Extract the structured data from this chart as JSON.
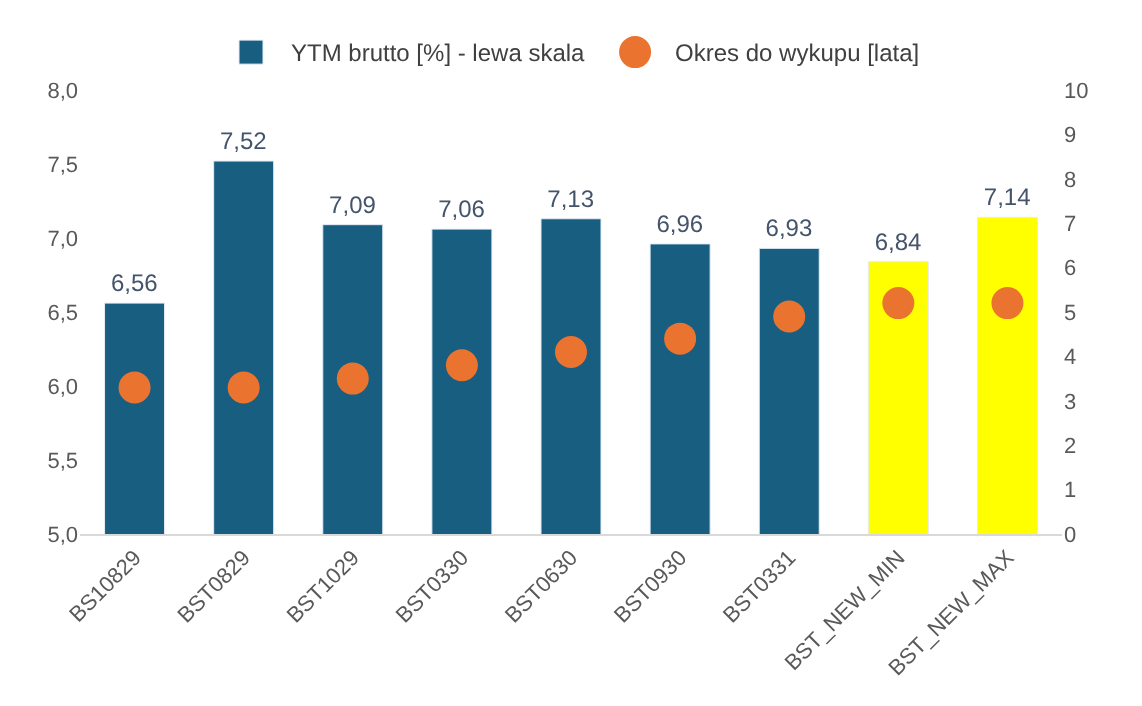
{
  "chart_data": {
    "type": "bar",
    "categories": [
      "BS10829",
      "BST0829",
      "BST1029",
      "BST0330",
      "BST0630",
      "BST0930",
      "BST0331",
      "BST_NEW_MIN",
      "BST_NEW_MAX"
    ],
    "series": [
      {
        "name": "YTM brutto [%] - lewa skala",
        "color": "#175e80",
        "colors": [
          "#175e80",
          "#175e80",
          "#175e80",
          "#175e80",
          "#175e80",
          "#175e80",
          "#175e80",
          "#ffff00",
          "#ffff00"
        ],
        "values": [
          6.56,
          7.52,
          7.09,
          7.06,
          7.13,
          6.96,
          6.93,
          6.84,
          7.14
        ],
        "value_labels": [
          "6,56",
          "7,52",
          "7,09",
          "7,06",
          "7,13",
          "6,96",
          "6,93",
          "6,84",
          "7,14"
        ]
      },
      {
        "name": "Okres do wykupu [lata]",
        "type": "scatter",
        "axis": "y2",
        "color": "#eb7330",
        "values": [
          3.3,
          3.3,
          3.5,
          3.8,
          4.1,
          4.4,
          4.9,
          5.2,
          5.2
        ]
      }
    ],
    "ylim": [
      5.0,
      8.0
    ],
    "yticks": [
      {
        "value": 5.0,
        "label": "5,0"
      },
      {
        "value": 5.5,
        "label": "5,5"
      },
      {
        "value": 6.0,
        "label": "6,0"
      },
      {
        "value": 6.5,
        "label": "6,5"
      },
      {
        "value": 7.0,
        "label": "7,0"
      },
      {
        "value": 7.5,
        "label": "7,5"
      },
      {
        "value": 8.0,
        "label": "8,0"
      }
    ],
    "y2lim": [
      0,
      10
    ],
    "y2ticks": [
      0,
      1,
      2,
      3,
      4,
      5,
      6,
      7,
      8,
      9,
      10
    ],
    "legend": "top"
  }
}
